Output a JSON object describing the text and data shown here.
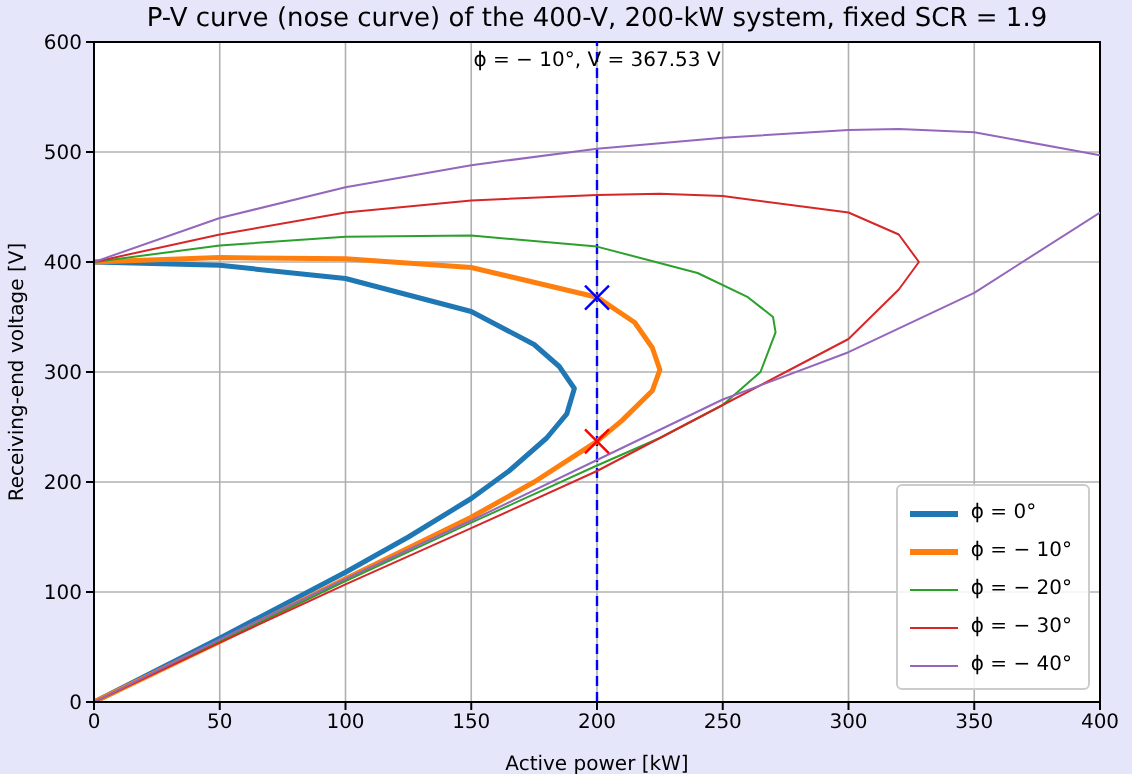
{
  "chart_data": {
    "type": "line",
    "title": "P-V curve (nose curve) of the 400-V, 200-kW system, fixed SCR = 1.9",
    "xlabel": "Active power [kW]",
    "ylabel": "Receiving-end voltage [V]",
    "xlim": [
      0,
      400
    ],
    "ylim": [
      0,
      600
    ],
    "xticks": [
      0,
      50,
      100,
      150,
      200,
      250,
      300,
      350,
      400
    ],
    "yticks": [
      0,
      100,
      200,
      300,
      400,
      500,
      600
    ],
    "grid": true,
    "legend": "bottom right",
    "marker": "none",
    "line_style": "solid",
    "series": [
      {
        "name": "ϕ = 0°",
        "color": "#1f77b4",
        "x": [
          0,
          50,
          100,
          150,
          175,
          185,
          191,
          188,
          180,
          165,
          150,
          125,
          100,
          50,
          0
        ],
        "values": [
          400,
          397,
          385,
          355,
          325,
          305,
          285,
          262,
          240,
          210,
          185,
          150,
          118,
          58,
          0
        ]
      },
      {
        "name": "ϕ = − 10°",
        "color": "#ff7f0e",
        "x": [
          0,
          50,
          100,
          150,
          200,
          215,
          222,
          225,
          222,
          210,
          200,
          175,
          150,
          100,
          50,
          0
        ],
        "values": [
          400,
          404,
          403,
          395,
          368,
          345,
          322,
          302,
          283,
          256,
          237,
          200,
          168,
          112,
          55,
          0
        ]
      },
      {
        "name": "ϕ = − 20°",
        "color": "#2ca02c",
        "x": [
          0,
          50,
          100,
          150,
          200,
          240,
          260,
          270,
          271,
          265,
          250,
          225,
          200,
          150,
          100,
          50,
          0
        ],
        "values": [
          400,
          415,
          423,
          424,
          414,
          390,
          368,
          350,
          336,
          300,
          270,
          240,
          215,
          163,
          110,
          55,
          0
        ]
      },
      {
        "name": "ϕ = − 30°",
        "color": "#d62728",
        "x": [
          0,
          50,
          100,
          150,
          200,
          225,
          250,
          300,
          320,
          328,
          320,
          300,
          275,
          250,
          200,
          150,
          100,
          50,
          0
        ],
        "values": [
          400,
          425,
          445,
          456,
          461,
          462,
          460,
          445,
          425,
          400,
          375,
          330,
          300,
          270,
          210,
          158,
          107,
          54,
          0
        ]
      },
      {
        "name": "ϕ = − 40°",
        "color": "#9467bd",
        "x": [
          0,
          50,
          100,
          150,
          200,
          250,
          300,
          320,
          350,
          400
        ],
        "values": [
          400,
          440,
          468,
          488,
          503,
          513,
          520,
          521,
          518,
          497
        ]
      },
      {
        "color": "#9467bd",
        "x": [
          400,
          350,
          300,
          250,
          200,
          150,
          100,
          50,
          0
        ],
        "values": [
          445,
          372,
          318,
          275,
          220,
          165,
          112,
          57,
          0
        ]
      },
      {
        "type": "scatter",
        "color": "#0000ff",
        "marker": "cross",
        "x": [
          200
        ],
        "values": [
          367.53
        ]
      },
      {
        "type": "scatter",
        "color": "#ff0000",
        "marker": "cross",
        "x": [
          200
        ],
        "values": [
          237
        ]
      }
    ],
    "ref_lines": [
      {
        "axis": "x",
        "value": 200,
        "color": "#0000ff",
        "line_style": "dashed"
      }
    ],
    "annotations": [
      "ϕ = − 10°, V = 367.53 V"
    ]
  }
}
